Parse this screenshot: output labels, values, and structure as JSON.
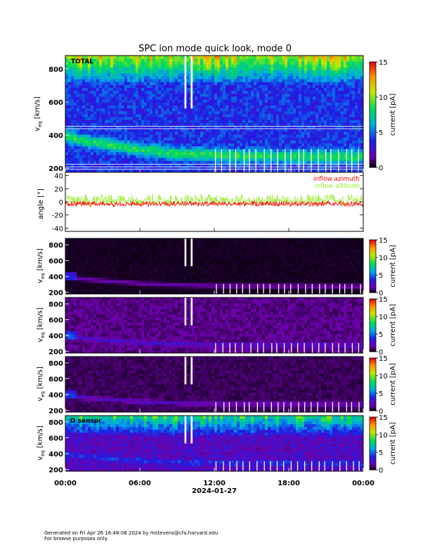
{
  "chart_data": [
    {
      "type": "heatmap",
      "title": "SPC ion mode quick look, mode 0",
      "panel_label": "TOTAL",
      "ylabel_base": "v",
      "ylabel_sub": "eq",
      "ylabel_unit": "[km/s]",
      "yticks": [
        200,
        400,
        600,
        800
      ],
      "ylim": [
        175,
        880
      ],
      "colorbar": {
        "label": "current [pA]",
        "ticks": [
          0,
          5,
          10,
          15
        ],
        "range": [
          0,
          15
        ],
        "colormap": "rainbow"
      },
      "background_level": 4,
      "ridge": [
        {
          "t": 0,
          "v": 400
        },
        {
          "t": 1,
          "v": 375
        },
        {
          "t": 2,
          "v": 360
        },
        {
          "t": 4,
          "v": 335
        },
        {
          "t": 6,
          "v": 315
        },
        {
          "t": 8,
          "v": 295
        },
        {
          "t": 10,
          "v": 285
        },
        {
          "t": 12,
          "v": 280
        },
        {
          "t": 14,
          "v": 275
        },
        {
          "t": 16,
          "v": 275
        },
        {
          "t": 18,
          "v": 272
        },
        {
          "t": 20,
          "v": 270
        },
        {
          "t": 22,
          "v": 270
        },
        {
          "t": 24,
          "v": 270
        }
      ]
    },
    {
      "type": "line",
      "ylabel": "angle [°]",
      "yticks": [
        -40,
        -20,
        0,
        20,
        40
      ],
      "ylim": [
        -45,
        45
      ],
      "series": [
        {
          "name": "inflow azimuth",
          "color": "#ff0000",
          "mean": -3,
          "spread": 4
        },
        {
          "name": "inflow altitude",
          "color": "#99ee33",
          "mean": 3,
          "spread": 9
        }
      ]
    },
    {
      "type": "heatmap",
      "panel_label": "",
      "ylabel_base": "v",
      "ylabel_sub": "eq",
      "ylabel_unit": "[km/s]",
      "yticks": [
        200,
        400,
        600,
        800
      ],
      "ylim": [
        180,
        880
      ],
      "colorbar": {
        "label": "current [pA]",
        "ticks": [
          0,
          5,
          10,
          15
        ],
        "range": [
          0,
          15
        ],
        "colormap": "rainbow"
      },
      "background_level": 0.3,
      "ridge": [
        {
          "t": 0,
          "v": 400
        },
        {
          "t": 2,
          "v": 360
        },
        {
          "t": 6,
          "v": 315
        },
        {
          "t": 10,
          "v": 290
        },
        {
          "t": 12,
          "v": 285
        },
        {
          "t": 24,
          "v": 280
        }
      ]
    },
    {
      "type": "heatmap",
      "panel_label": "",
      "ylabel_base": "v",
      "ylabel_sub": "eq",
      "ylabel_unit": "[km/s]",
      "yticks": [
        200,
        400,
        600,
        800
      ],
      "ylim": [
        180,
        880
      ],
      "colorbar": {
        "label": "current [pA]",
        "ticks": [
          0,
          5,
          10,
          15
        ],
        "range": [
          0,
          15
        ],
        "colormap": "rainbow"
      },
      "background_level": 1.2,
      "ridge": [
        {
          "t": 0,
          "v": 400
        },
        {
          "t": 2,
          "v": 360
        },
        {
          "t": 6,
          "v": 315
        },
        {
          "t": 10,
          "v": 290
        },
        {
          "t": 12,
          "v": 285
        },
        {
          "t": 24,
          "v": 280
        }
      ]
    },
    {
      "type": "heatmap",
      "panel_label": "",
      "ylabel_base": "v",
      "ylabel_sub": "eq",
      "ylabel_unit": "[km/s]",
      "yticks": [
        200,
        400,
        600,
        800
      ],
      "ylim": [
        180,
        880
      ],
      "colorbar": {
        "label": "current [pA]",
        "ticks": [
          0,
          5,
          10,
          15
        ],
        "range": [
          0,
          15
        ],
        "colormap": "rainbow"
      },
      "background_level": 0.8,
      "ridge": [
        {
          "t": 0,
          "v": 400
        },
        {
          "t": 2,
          "v": 360
        },
        {
          "t": 6,
          "v": 315
        },
        {
          "t": 10,
          "v": 290
        },
        {
          "t": 12,
          "v": 285
        },
        {
          "t": 24,
          "v": 280
        }
      ]
    },
    {
      "type": "heatmap",
      "panel_label": "D sensor",
      "ylabel_base": "v",
      "ylabel_sub": "eq",
      "ylabel_unit": "[km/s]",
      "yticks": [
        200,
        400,
        600,
        800
      ],
      "ylim": [
        180,
        880
      ],
      "colorbar": {
        "label": "current [pA]",
        "ticks": [
          0,
          5,
          10,
          15
        ],
        "range": [
          0,
          15
        ],
        "colormap": "rainbow"
      },
      "background_level": 2.5,
      "ridge": [
        {
          "t": 0,
          "v": 400
        },
        {
          "t": 2,
          "v": 360
        },
        {
          "t": 6,
          "v": 315
        },
        {
          "t": 10,
          "v": 290
        },
        {
          "t": 12,
          "v": 285
        },
        {
          "t": 24,
          "v": 280
        }
      ]
    }
  ],
  "time_axis": {
    "ticks": [
      "00:00",
      "06:00",
      "12:00",
      "18:00",
      "00:00"
    ],
    "tick_hours": [
      0,
      6,
      12,
      18,
      24
    ],
    "date_label": "2024-01-27",
    "range_hours": [
      0,
      24
    ]
  },
  "footer": {
    "line1": "Generated on Fri Apr 26 16:48:08 2024 by mstevens@cfa.harvard.edu",
    "line2": "For browse purposes only."
  }
}
